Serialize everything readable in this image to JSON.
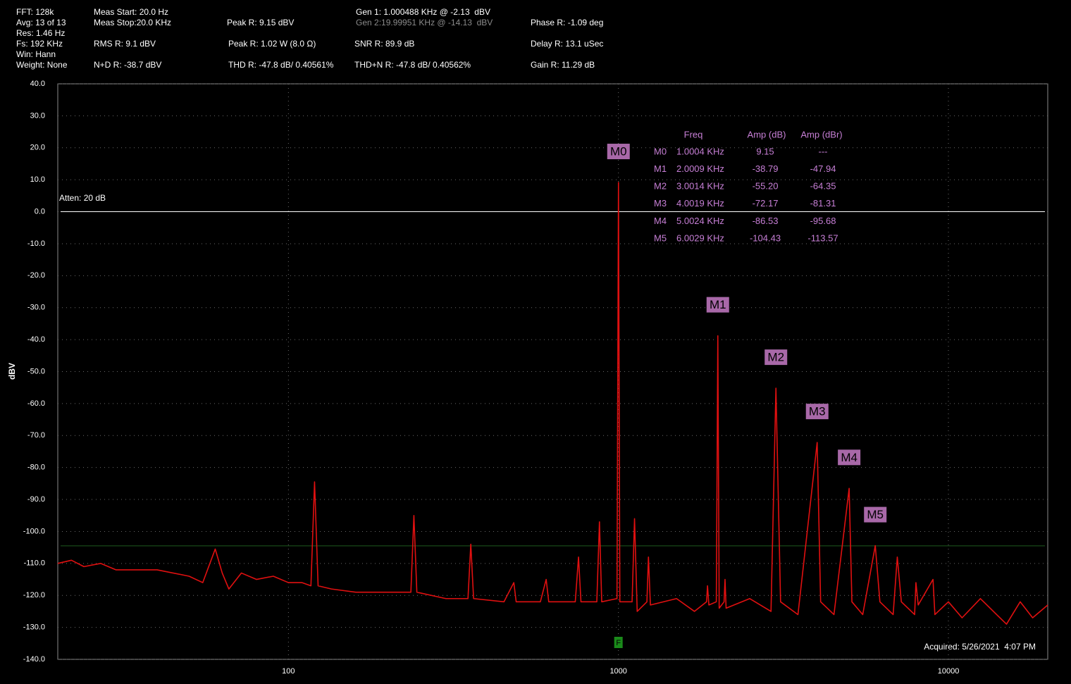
{
  "header": [
    "FFT: 128k",
    "Avg: 13 of 13",
    "Res: 1.46 Hz",
    "Fs: 192 KHz",
    "Win: Hann",
    "Weight: None",
    "Meas Start: 20.0 Hz",
    "Meas Stop:20.0 KHz",
    "RMS R: 9.1 dBV",
    "N+D R: -38.7 dBV",
    "Peak R: 9.15 dBV",
    "Peak R: 1.02 W (8.0 Ω)",
    "THD R: -47.8 dB/ 0.40561%",
    "Gen 1: 1.000488 KHz @ -2.13  dBV",
    "Gen 2:19.99951 KHz @ -14.13  dBV",
    "SNR R: 89.9 dB",
    "THD+N R: -47.8 dB/ 0.40562%",
    "Phase R: -1.09 deg",
    "Delay R: 13.1 uSec",
    "Gain R: 11.29 dB"
  ],
  "chart_data": {
    "type": "line",
    "y_label": "dBV",
    "x_log": true,
    "grid": true,
    "xlim": [
      20,
      20000
    ],
    "xticks": [
      100,
      1000,
      10000
    ],
    "ylim": [
      -140,
      40
    ],
    "yticks": [
      {
        "value": 40,
        "label": "40.0"
      },
      {
        "value": 30,
        "label": "30.0"
      },
      {
        "value": 20,
        "label": "20.0"
      },
      {
        "value": 10,
        "label": "10.0"
      },
      {
        "value": 0,
        "label": "0.0"
      },
      {
        "value": -10,
        "label": "-10.0"
      },
      {
        "value": -20,
        "label": "-20.0"
      },
      {
        "value": -30,
        "label": "-30.0"
      },
      {
        "value": -40,
        "label": "-40.0"
      },
      {
        "value": -50,
        "label": "-50.0"
      },
      {
        "value": -60,
        "label": "-60.0"
      },
      {
        "value": -70,
        "label": "-70.0"
      },
      {
        "value": -80,
        "label": "-80.0"
      },
      {
        "value": -90,
        "label": "-90.0"
      },
      {
        "value": -100,
        "label": "-100.0"
      },
      {
        "value": -110,
        "label": "-110.0"
      },
      {
        "value": -120,
        "label": "-120.0"
      },
      {
        "value": -130,
        "label": "-130.0"
      },
      {
        "value": -140,
        "label": "-140.0"
      }
    ],
    "hlines": [
      {
        "value": 0,
        "color": "#ffffff"
      },
      {
        "value": -104.5,
        "color": "#1e5a1e"
      }
    ],
    "x": [
      20,
      22,
      24,
      27,
      30,
      40,
      50,
      55,
      60,
      63,
      66,
      72,
      80,
      90,
      100,
      110,
      117,
      120,
      123,
      135,
      160,
      200,
      235,
      240,
      245,
      300,
      350,
      357,
      364,
      450,
      482,
      490,
      580,
      604,
      615,
      740,
      757,
      770,
      860,
      876,
      890,
      990,
      1000.4,
      1010,
      1100,
      1119,
      1140,
      1220,
      1233,
      1250,
      1500,
      1700,
      1850,
      1862,
      1880,
      1980,
      2000.9,
      2020,
      2090,
      2104,
      2120,
      2500,
      2900,
      3001.4,
      3100,
      3500,
      4001.9,
      4100,
      4500,
      5002.4,
      5100,
      5500,
      6002.9,
      6200,
      6800,
      7000,
      7200,
      7900,
      7972,
      8100,
      8980,
      9100,
      10000,
      11000,
      12500,
      14000,
      15000,
      16500,
      18000,
      20000
    ],
    "series": [
      {
        "name": "R",
        "color": "#e01010",
        "values": [
          -110,
          -109,
          -111,
          -110,
          -112,
          -112,
          -114,
          -116,
          -105.5,
          -113,
          -118,
          -113,
          -115,
          -114,
          -116,
          -116,
          -117,
          -84.5,
          -117,
          -118,
          -119,
          -119,
          -119,
          -95,
          -119,
          -121,
          -121,
          -104,
          -121,
          -122,
          -116,
          -122,
          -122,
          -115,
          -122,
          -122,
          -108,
          -122,
          -122,
          -97,
          -122,
          -121,
          9.15,
          -122,
          -122,
          -96,
          -125,
          -122,
          -108,
          -123,
          -121,
          -125,
          -122,
          -117,
          -123,
          -122,
          -38.79,
          -124,
          -122,
          -115,
          -124,
          -121,
          -125,
          -55.2,
          -122,
          -126,
          -72.17,
          -122,
          -126,
          -86.53,
          -122,
          -126,
          -104.43,
          -122,
          -126,
          -108,
          -122,
          -126,
          -116,
          -123,
          -115,
          -126,
          -122,
          -127,
          -121,
          -126,
          -129,
          -122,
          -127,
          -123
        ]
      }
    ],
    "markers": [
      {
        "label": "M0",
        "x": 1000.4,
        "value": 9.15
      },
      {
        "label": "M1",
        "x": 2000.9,
        "value": -38.79
      },
      {
        "label": "M2",
        "x": 3001.4,
        "value": -55.2
      },
      {
        "label": "M3",
        "x": 4001.9,
        "value": -72.17
      },
      {
        "label": "M4",
        "x": 5002.4,
        "value": -86.53
      },
      {
        "label": "M5",
        "x": 6002.9,
        "value": -104.43
      }
    ],
    "marker_color": "#a868a8",
    "marker_table": {
      "columns": [
        "Freq",
        "Amp (dB)",
        "Amp (dBr)"
      ],
      "rows": [
        [
          "M0",
          "1.0004 KHz",
          "9.15",
          "---"
        ],
        [
          "M1",
          "2.0009 KHz",
          "-38.79",
          "-47.94"
        ],
        [
          "M2",
          "3.0014 KHz",
          "-55.20",
          "-64.35"
        ],
        [
          "M3",
          "4.0019 KHz",
          "-72.17",
          "-81.31"
        ],
        [
          "M4",
          "5.0024 KHz",
          "-86.53",
          "-95.68"
        ],
        [
          "M5",
          "6.0029 KHz",
          "-104.43",
          "-113.57"
        ]
      ]
    },
    "freq_marker": {
      "label": "F",
      "x": 1000
    },
    "annotations": [
      "Atten: 20 dB",
      "Acquired: 5/26/2021  4:07 PM"
    ]
  }
}
